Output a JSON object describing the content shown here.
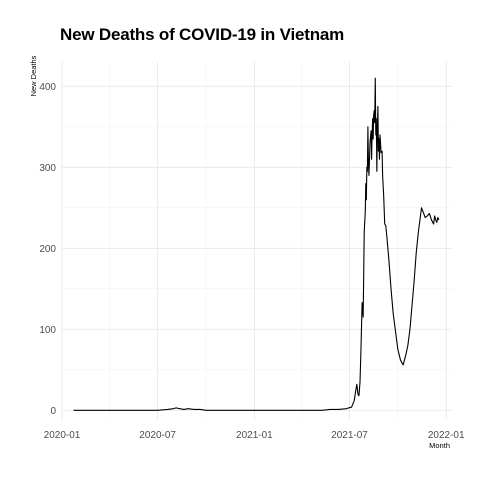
{
  "chart_data": {
    "type": "line",
    "title": "New Deaths of COVID-19 in Vietnam",
    "xlabel": "Month",
    "ylabel": "New Deaths",
    "x_ticks": [
      "2020-01",
      "2020-07",
      "2021-01",
      "2021-07",
      "2022-01"
    ],
    "y_ticks": [
      0,
      100,
      200,
      300,
      400
    ],
    "xlim": [
      "2020-01-01",
      "2022-01-12"
    ],
    "ylim": [
      -12,
      430
    ],
    "grid": true,
    "legend": "none",
    "series": [
      {
        "x": [
          "2020-01-23",
          "2020-03-01",
          "2020-05-01",
          "2020-07-01",
          "2020-07-20",
          "2020-07-31",
          "2020-08-05",
          "2020-08-12",
          "2020-08-20",
          "2020-08-28",
          "2020-09-08",
          "2020-09-20",
          "2020-10-01",
          "2021-01-01",
          "2021-04-01",
          "2021-05-10",
          "2021-05-25",
          "2021-06-10",
          "2021-06-25",
          "2021-07-05",
          "2021-07-10",
          "2021-07-13",
          "2021-07-15",
          "2021-07-17",
          "2021-07-19",
          "2021-07-21",
          "2021-07-23",
          "2021-07-25",
          "2021-07-27",
          "2021-07-29",
          "2021-07-31",
          "2021-08-01",
          "2021-08-02",
          "2021-08-03",
          "2021-08-04",
          "2021-08-05",
          "2021-08-06",
          "2021-08-07",
          "2021-08-09",
          "2021-08-11",
          "2021-08-12",
          "2021-08-13",
          "2021-08-14",
          "2021-08-15",
          "2021-08-16",
          "2021-08-17",
          "2021-08-18",
          "2021-08-19",
          "2021-08-20",
          "2021-08-21",
          "2021-08-22",
          "2021-08-23",
          "2021-08-24",
          "2021-08-25",
          "2021-08-26",
          "2021-08-27",
          "2021-08-28",
          "2021-08-29",
          "2021-08-30",
          "2021-09-01",
          "2021-09-02",
          "2021-09-04",
          "2021-09-06",
          "2021-09-08",
          "2021-09-10",
          "2021-09-14",
          "2021-09-18",
          "2021-09-22",
          "2021-09-26",
          "2021-10-01",
          "2021-10-06",
          "2021-10-11",
          "2021-10-16",
          "2021-10-20",
          "2021-10-24",
          "2021-10-28",
          "2021-11-01",
          "2021-11-05",
          "2021-11-09",
          "2021-11-13",
          "2021-11-15",
          "2021-11-18",
          "2021-11-22",
          "2021-11-26",
          "2021-11-30",
          "2021-12-04",
          "2021-12-08",
          "2021-12-10",
          "2021-12-12",
          "2021-12-14",
          "2021-12-16",
          "2021-12-18"
        ],
        "y": [
          0,
          0,
          0,
          0,
          1,
          2,
          3,
          2,
          1,
          2,
          1,
          1,
          0,
          0,
          0,
          0,
          1,
          1,
          2,
          4,
          12,
          25,
          32,
          20,
          18,
          35,
          80,
          133,
          115,
          220,
          245,
          280,
          260,
          300,
          295,
          350,
          305,
          290,
          330,
          345,
          310,
          340,
          360,
          335,
          365,
          370,
          355,
          410,
          340,
          360,
          295,
          345,
          375,
          320,
          335,
          310,
          340,
          330,
          318,
          320,
          290,
          265,
          230,
          228,
          215,
          185,
          150,
          120,
          100,
          75,
          62,
          56,
          68,
          80,
          100,
          130,
          160,
          195,
          220,
          240,
          250,
          245,
          238,
          240,
          243,
          235,
          230,
          240,
          235,
          232,
          238,
          235
        ]
      }
    ]
  }
}
